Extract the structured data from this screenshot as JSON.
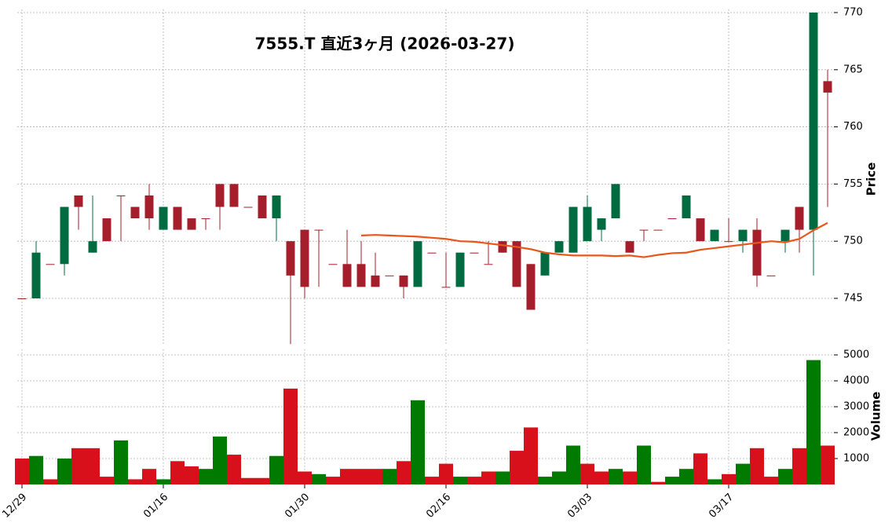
{
  "chart_data": {
    "type": "candlestick",
    "title": "7555.T  直近3ヶ月  (2026-03-27)",
    "categories": [
      "12/29",
      null,
      null,
      null,
      null,
      null,
      null,
      null,
      null,
      null,
      "01/16",
      null,
      null,
      null,
      null,
      null,
      null,
      null,
      null,
      null,
      "01/30",
      null,
      null,
      null,
      null,
      null,
      null,
      null,
      null,
      null,
      "02/16",
      null,
      null,
      null,
      null,
      null,
      null,
      null,
      null,
      null,
      "03/03",
      null,
      null,
      null,
      null,
      null,
      null,
      null,
      null,
      null,
      "03/17",
      null,
      null,
      null,
      null,
      null,
      null,
      null
    ],
    "open": [
      745,
      745,
      748,
      748,
      754,
      749,
      752,
      754,
      753,
      754,
      751,
      753,
      752,
      752,
      755,
      755,
      753,
      754,
      752,
      750,
      751,
      751,
      748,
      748,
      748,
      747,
      747,
      747,
      746,
      749,
      746,
      746,
      749,
      748,
      750,
      750,
      748,
      747,
      749,
      749,
      750,
      751,
      752,
      750,
      751,
      751,
      752,
      752,
      752,
      750,
      750,
      750,
      751,
      747,
      750,
      753,
      751,
      764
    ],
    "high": [
      745,
      750,
      748,
      753,
      754,
      754,
      752,
      754,
      753,
      755,
      753,
      753,
      752,
      752,
      755,
      755,
      753,
      754,
      754,
      750,
      751,
      751,
      748,
      751,
      750,
      749,
      747,
      747,
      750,
      749,
      749,
      749,
      749,
      750,
      750,
      750,
      748,
      749,
      750,
      753,
      754,
      752,
      755,
      750,
      751,
      751,
      752,
      754,
      752,
      751,
      752,
      751,
      752,
      747,
      751,
      753,
      770,
      765
    ],
    "low": [
      745,
      745,
      748,
      747,
      751,
      749,
      750,
      750,
      752,
      751,
      751,
      751,
      751,
      751,
      751,
      753,
      753,
      752,
      750,
      741,
      745,
      746,
      748,
      746,
      746,
      746,
      747,
      745,
      746,
      749,
      746,
      746,
      749,
      748,
      749,
      746,
      744,
      747,
      749,
      749,
      750,
      750,
      752,
      749,
      750,
      751,
      752,
      752,
      750,
      750,
      750,
      749,
      746,
      747,
      749,
      749,
      747,
      753
    ],
    "close": [
      745,
      749,
      748,
      753,
      753,
      750,
      750,
      754,
      752,
      752,
      753,
      751,
      751,
      752,
      753,
      753,
      753,
      752,
      754,
      747,
      746,
      751,
      748,
      746,
      746,
      746,
      747,
      746,
      750,
      749,
      746,
      749,
      749,
      748,
      749,
      746,
      744,
      749,
      750,
      753,
      753,
      752,
      755,
      749,
      751,
      751,
      752,
      754,
      750,
      751,
      750,
      751,
      747,
      747,
      751,
      751,
      770,
      763
    ],
    "up_color": "#006b40",
    "down_color": "#a51e2b",
    "ma": {
      "color": "#e8561a",
      "values": [
        null,
        null,
        null,
        null,
        null,
        null,
        null,
        null,
        null,
        null,
        null,
        null,
        null,
        null,
        null,
        null,
        null,
        null,
        null,
        null,
        null,
        null,
        null,
        null,
        750.5,
        750.55,
        750.5,
        750.45,
        750.4,
        750.3,
        750.2,
        750.0,
        749.95,
        749.8,
        749.65,
        749.5,
        749.3,
        749.0,
        748.85,
        748.75,
        748.75,
        748.75,
        748.7,
        748.75,
        748.6,
        748.8,
        748.95,
        749.0,
        749.25,
        749.4,
        749.55,
        749.7,
        749.85,
        750.0,
        749.9,
        750.2,
        750.95,
        751.6
      ]
    },
    "ylim": [
      741,
      770
    ],
    "yticks": [
      745,
      750,
      755,
      760,
      765,
      770
    ],
    "ylabel": "Price",
    "volume": {
      "label": "Volume",
      "up_color": "#007a00",
      "down_color": "#d7101c",
      "values": [
        1000,
        1100,
        200,
        1000,
        1400,
        1400,
        300,
        1700,
        200,
        600,
        200,
        900,
        700,
        600,
        1850,
        1150,
        250,
        250,
        1100,
        3700,
        500,
        400,
        300,
        600,
        600,
        600,
        600,
        900,
        3250,
        300,
        800,
        300,
        300,
        500,
        500,
        1300,
        2200,
        300,
        500,
        1500,
        800,
        500,
        600,
        500,
        1500,
        100,
        300,
        600,
        1200,
        200,
        400,
        800,
        1400,
        300,
        600,
        1400,
        4800,
        1500
      ],
      "ylim": [
        0,
        5100
      ],
      "yticks": [
        1000,
        2000,
        3000,
        4000,
        5000
      ]
    },
    "grid": true
  }
}
